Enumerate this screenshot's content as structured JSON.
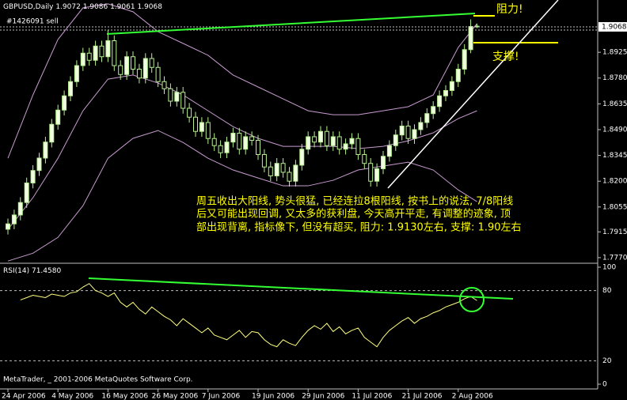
{
  "chart_data": {
    "type": "candlestick",
    "title": "GBPUSD,Daily",
    "order_label": "#1426091 sell",
    "copyright": "MetaTrader, _ 2001-2006 MetaQuotes Software Corp.",
    "annotations": [
      "阻力!",
      "支撑!"
    ],
    "comment": [
      "周五收出大阳线, 势头很猛, 已经连拉8根阳线, 按书上的说法, 7/8阳线",
      "后又可能出现回调, 又太多的获利盘, 今天高开平走, 有调整的迹象, 顶",
      "部出现背离, 指标像下, 但没有超买, 阻力: 1.9130左右, 支撑: 1.90左右"
    ],
    "categories": [
      "24 Apr 2006",
      null,
      null,
      null,
      null,
      null,
      null,
      null,
      "4 May 2006",
      null,
      null,
      null,
      null,
      null,
      null,
      null,
      "16 May 2006",
      null,
      null,
      null,
      null,
      null,
      null,
      null,
      "26 May 2006",
      null,
      null,
      null,
      null,
      null,
      null,
      null,
      "7 Jun 2006",
      null,
      null,
      null,
      null,
      null,
      null,
      null,
      "19 Jun 2006",
      null,
      null,
      null,
      null,
      null,
      null,
      null,
      "29 Jun 2006",
      null,
      null,
      null,
      null,
      null,
      null,
      null,
      "11 Jul 2006",
      null,
      null,
      null,
      null,
      null,
      null,
      null,
      "21 Jul 2006",
      null,
      null,
      null,
      null,
      null,
      null,
      null,
      "2 Aug 2006",
      null,
      null,
      null
    ],
    "open": [
      1.793,
      1.796,
      1.801,
      1.808,
      1.819,
      1.826,
      1.833,
      1.842,
      1.852,
      1.86,
      1.868,
      1.876,
      1.885,
      1.892,
      1.888,
      1.896,
      1.89,
      1.899,
      1.885,
      1.88,
      1.89,
      1.883,
      1.878,
      1.889,
      1.884,
      1.876,
      1.872,
      1.865,
      1.87,
      1.861,
      1.856,
      1.848,
      1.853,
      1.844,
      1.84,
      1.836,
      1.842,
      1.847,
      1.838,
      1.845,
      1.843,
      1.835,
      1.828,
      1.823,
      1.83,
      1.825,
      1.82,
      1.829,
      1.838,
      1.845,
      1.842,
      1.848,
      1.84,
      1.845,
      1.838,
      1.841,
      1.844,
      1.835,
      1.83,
      1.82,
      1.827,
      1.834,
      1.84,
      1.846,
      1.851,
      1.844,
      1.849,
      1.853,
      1.858,
      1.862,
      1.868,
      1.871,
      1.876,
      1.883,
      1.894,
      1.9072
    ],
    "high": [
      1.799,
      1.804,
      1.811,
      1.822,
      1.829,
      1.836,
      1.845,
      1.855,
      1.863,
      1.871,
      1.879,
      1.888,
      1.895,
      1.895,
      1.899,
      1.899,
      1.905,
      1.902,
      1.888,
      1.893,
      1.893,
      1.886,
      1.892,
      1.892,
      1.887,
      1.879,
      1.875,
      1.873,
      1.873,
      1.864,
      1.859,
      1.856,
      1.856,
      1.847,
      1.843,
      1.845,
      1.85,
      1.85,
      1.848,
      1.848,
      1.846,
      1.838,
      1.831,
      1.833,
      1.833,
      1.828,
      1.832,
      1.841,
      1.848,
      1.848,
      1.851,
      1.851,
      1.848,
      1.848,
      1.844,
      1.847,
      1.847,
      1.838,
      1.833,
      1.83,
      1.837,
      1.843,
      1.849,
      1.854,
      1.854,
      1.852,
      1.856,
      1.861,
      1.865,
      1.871,
      1.874,
      1.879,
      1.886,
      1.897,
      1.911,
      1.9086
    ],
    "low": [
      1.79,
      1.793,
      1.798,
      1.805,
      1.816,
      1.823,
      1.83,
      1.839,
      1.849,
      1.857,
      1.865,
      1.873,
      1.882,
      1.885,
      1.885,
      1.887,
      1.887,
      1.882,
      1.877,
      1.877,
      1.88,
      1.875,
      1.875,
      1.881,
      1.873,
      1.869,
      1.862,
      1.862,
      1.858,
      1.853,
      1.845,
      1.845,
      1.841,
      1.837,
      1.833,
      1.833,
      1.839,
      1.835,
      1.835,
      1.84,
      1.832,
      1.825,
      1.82,
      1.82,
      1.822,
      1.817,
      1.817,
      1.826,
      1.835,
      1.839,
      1.839,
      1.837,
      1.837,
      1.835,
      1.835,
      1.838,
      1.832,
      1.827,
      1.817,
      1.817,
      1.824,
      1.831,
      1.837,
      1.843,
      1.841,
      1.841,
      1.846,
      1.85,
      1.855,
      1.859,
      1.865,
      1.868,
      1.873,
      1.88,
      1.892,
      1.9061
    ],
    "close": [
      1.796,
      1.801,
      1.808,
      1.819,
      1.826,
      1.833,
      1.842,
      1.852,
      1.86,
      1.868,
      1.876,
      1.885,
      1.892,
      1.888,
      1.896,
      1.89,
      1.899,
      1.885,
      1.88,
      1.89,
      1.883,
      1.878,
      1.889,
      1.884,
      1.876,
      1.872,
      1.865,
      1.87,
      1.861,
      1.856,
      1.848,
      1.853,
      1.844,
      1.84,
      1.836,
      1.842,
      1.847,
      1.838,
      1.845,
      1.843,
      1.835,
      1.828,
      1.823,
      1.83,
      1.825,
      1.82,
      1.829,
      1.838,
      1.845,
      1.842,
      1.848,
      1.84,
      1.845,
      1.838,
      1.841,
      1.844,
      1.835,
      1.83,
      1.82,
      1.827,
      1.834,
      1.84,
      1.846,
      1.851,
      1.844,
      1.849,
      1.853,
      1.858,
      1.862,
      1.868,
      1.871,
      1.876,
      1.883,
      1.894,
      1.907,
      1.9068
    ],
    "up_color": "#f0ffe0",
    "down_color": "#000000",
    "wick_color": "#b8f090",
    "ylim": [
      1.7743,
      1.9219
    ],
    "yticks": [
      1.8925,
      {
        "value": 1.878,
        "label": "1.8780"
      },
      1.8635,
      {
        "value": 1.849,
        "label": "1.8490"
      },
      1.8345,
      {
        "value": 1.82,
        "label": "1.8200"
      },
      1.8055,
      1.7915,
      {
        "value": 1.777,
        "label": "1.7770"
      }
    ],
    "bands": [
      {
        "color": "#c89bd0",
        "x": [
          0,
          4,
          8,
          12,
          16,
          20,
          24,
          28,
          32,
          36,
          40,
          44,
          48,
          52,
          56,
          60,
          64,
          68,
          72,
          75
        ],
        "values": [
          1.8329,
          1.8685,
          1.8997,
          1.9175,
          1.9197,
          1.9153,
          1.9041,
          1.8975,
          1.8908,
          1.8797,
          1.873,
          1.8663,
          1.8596,
          1.8574,
          1.8574,
          1.8596,
          1.8619,
          1.8685,
          1.8952,
          1.9086
        ]
      },
      {
        "color": "#c89bd0",
        "x": [
          0,
          4,
          8,
          12,
          16,
          20,
          24,
          28,
          32,
          36,
          40,
          44,
          48,
          52,
          56,
          60,
          64,
          68,
          72,
          75
        ],
        "values": [
          1.7929,
          1.8107,
          1.8329,
          1.8596,
          1.8774,
          1.8797,
          1.8752,
          1.8685,
          1.8596,
          1.8507,
          1.8441,
          1.8396,
          1.8396,
          1.8396,
          1.8383,
          1.8396,
          1.8427,
          1.8472,
          1.8552,
          1.8596
        ]
      },
      {
        "color": "#c89bd0",
        "x": [
          0,
          4,
          8,
          12,
          16,
          20,
          24,
          28,
          32,
          36,
          40,
          44,
          48,
          52,
          56,
          60,
          64,
          68,
          72,
          75
        ],
        "values": [
          1.7751,
          1.7795,
          1.7884,
          1.8062,
          1.8329,
          1.8441,
          1.8485,
          1.8418,
          1.8329,
          1.8263,
          1.8218,
          1.8174,
          1.8174,
          1.8205,
          1.8263,
          1.8285,
          1.8307,
          1.8263,
          1.8151,
          1.8085
        ]
      }
    ],
    "rsi": {
      "title": "RSI(14)",
      "value_label": "71.4580",
      "color": "#ffff80",
      "values": [
        null,
        null,
        72,
        74,
        76,
        75,
        74,
        77,
        76,
        75,
        78,
        79,
        83,
        86,
        80,
        78,
        75,
        78,
        70,
        66,
        70,
        64,
        60,
        66,
        62,
        58,
        55,
        50,
        56,
        52,
        48,
        44,
        48,
        42,
        40,
        38,
        42,
        46,
        40,
        45,
        44,
        38,
        34,
        32,
        38,
        35,
        33,
        40,
        46,
        50,
        47,
        52,
        45,
        49,
        43,
        46,
        48,
        40,
        36,
        32,
        40,
        46,
        50,
        54,
        57,
        52,
        56,
        58,
        61,
        63,
        66,
        68,
        70,
        73,
        75,
        71.458
      ],
      "ylim": [
        0,
        100
      ],
      "yticks": [
        100,
        80,
        20,
        0
      ]
    }
  }
}
